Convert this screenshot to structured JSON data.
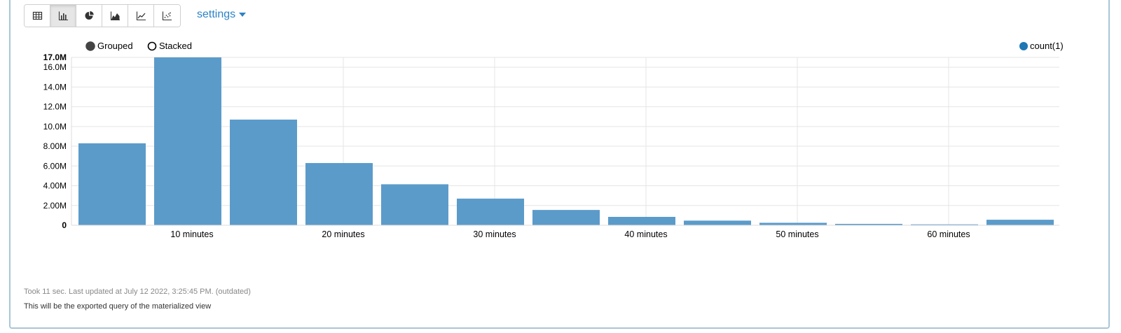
{
  "toolbar": {
    "buttons": [
      {
        "icon": "table-icon",
        "active": false
      },
      {
        "icon": "bar-chart-icon",
        "active": true
      },
      {
        "icon": "pie-chart-icon",
        "active": false
      },
      {
        "icon": "area-chart-icon",
        "active": false
      },
      {
        "icon": "line-chart-icon",
        "active": false
      },
      {
        "icon": "scatter-chart-icon",
        "active": false
      }
    ]
  },
  "settings_label": "settings",
  "controls": {
    "grouped_label": "Grouped",
    "stacked_label": "Stacked",
    "selected": "Grouped"
  },
  "chart_data": {
    "type": "bar",
    "series": [
      {
        "name": "count(1)",
        "color": "#5b9bca",
        "values": [
          8300000,
          17000000,
          10700000,
          6300000,
          4150000,
          2700000,
          1550000,
          850000,
          470000,
          250000,
          140000,
          90000,
          560000
        ]
      }
    ],
    "x_tick_labels": [
      "10 minutes",
      "20 minutes",
      "30 minutes",
      "40 minutes",
      "50 minutes",
      "60 minutes"
    ],
    "y_ticks": [
      0,
      2000000,
      4000000,
      6000000,
      8000000,
      10000000,
      12000000,
      14000000,
      16000000
    ],
    "y_tick_labels": [
      "0",
      "2.00M",
      "4.00M",
      "6.00M",
      "8.00M",
      "10.0M",
      "12.0M",
      "14.0M",
      "16.0M"
    ],
    "y_max_label": "17.0M",
    "ylim": [
      0,
      17000000
    ],
    "legend_position": "top-right",
    "grid": true
  },
  "footer": {
    "status": "Took 11 sec. Last updated at July 12 2022, 3:25:45 PM. (outdated)",
    "description": "This will be the exported query of the materialized view"
  }
}
